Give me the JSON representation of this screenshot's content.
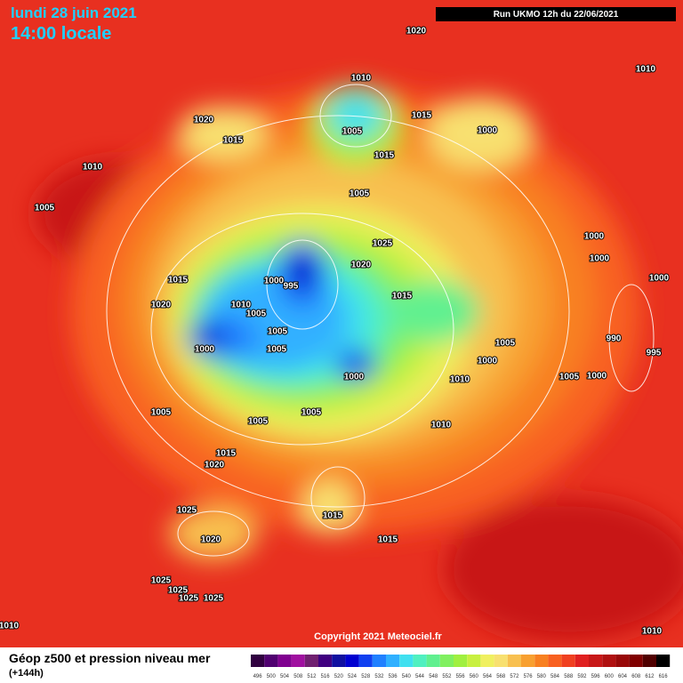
{
  "header": {
    "date": "lundi 28 juin 2021",
    "time": "14:00 locale",
    "run": "Run UKMO 12h du 22/06/2021"
  },
  "isobar_labels": [
    "1020",
    "1010",
    "1010",
    "1015",
    "1020",
    "1005",
    "1015",
    "1000",
    "1015",
    "1010",
    "1005",
    "1005",
    "1025",
    "1000",
    "1020",
    "1000",
    "1015",
    "1000",
    "995",
    "1000",
    "1015",
    "1020",
    "1010",
    "1005",
    "1005",
    "990",
    "1005",
    "995",
    "1000",
    "1005",
    "1000",
    "1000",
    "1010",
    "1005",
    "1000",
    "1005",
    "1005",
    "1005",
    "1010",
    "1015",
    "1020",
    "1025",
    "1015",
    "1020",
    "1015",
    "1025",
    "1025",
    "1025",
    "1025",
    "1010",
    "1010"
  ],
  "copyright": "Copyright 2021 Meteociel.fr",
  "legend": {
    "title": "Géop z500 et pression niveau mer",
    "subtitle": "(+144h)",
    "scale": [
      {
        "label": "496",
        "color": "#300040"
      },
      {
        "label": "500",
        "color": "#500070"
      },
      {
        "label": "504",
        "color": "#800090"
      },
      {
        "label": "508",
        "color": "#a010a0"
      },
      {
        "label": "512",
        "color": "#702070"
      },
      {
        "label": "516",
        "color": "#400080"
      },
      {
        "label": "520",
        "color": "#1010a0"
      },
      {
        "label": "524",
        "color": "#0000d0"
      },
      {
        "label": "528",
        "color": "#1040f0"
      },
      {
        "label": "532",
        "color": "#2080ff"
      },
      {
        "label": "536",
        "color": "#30b0ff"
      },
      {
        "label": "540",
        "color": "#40e0f0"
      },
      {
        "label": "544",
        "color": "#50f0c0"
      },
      {
        "label": "548",
        "color": "#60f090"
      },
      {
        "label": "552",
        "color": "#80f060"
      },
      {
        "label": "556",
        "color": "#a0f040"
      },
      {
        "label": "560",
        "color": "#c8f040"
      },
      {
        "label": "564",
        "color": "#f0f060"
      },
      {
        "label": "568",
        "color": "#f8e070"
      },
      {
        "label": "572",
        "color": "#f8c050"
      },
      {
        "label": "576",
        "color": "#f8a030"
      },
      {
        "label": "580",
        "color": "#f88020"
      },
      {
        "label": "584",
        "color": "#f86020"
      },
      {
        "label": "588",
        "color": "#f04020"
      },
      {
        "label": "592",
        "color": "#e02020"
      },
      {
        "label": "596",
        "color": "#c81818"
      },
      {
        "label": "600",
        "color": "#b01010"
      },
      {
        "label": "604",
        "color": "#980808"
      },
      {
        "label": "608",
        "color": "#800000"
      },
      {
        "label": "612",
        "color": "#500000"
      },
      {
        "label": "616",
        "color": "#000000"
      }
    ]
  }
}
